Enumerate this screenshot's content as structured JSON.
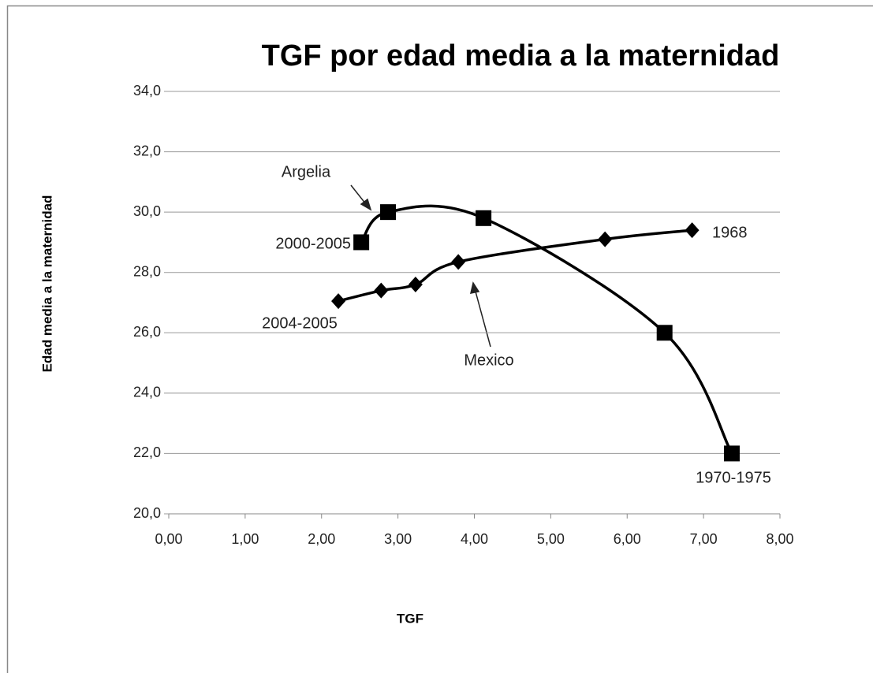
{
  "chart_data": {
    "type": "scatter",
    "title": "TGF por edad media a la maternidad",
    "x_label": "TGF",
    "y_label": "Edad media a la maternidad",
    "smooth": true,
    "grid": true,
    "series": [
      {
        "name": "Argelia",
        "color": "#000000",
        "marker": "square",
        "x": [
          2.52,
          2.87,
          4.12,
          6.49,
          7.37
        ],
        "values": [
          29.0,
          30.0,
          29.8,
          26.0,
          22.0
        ]
      },
      {
        "name": "Mexico",
        "color": "#000000",
        "marker": "diamond",
        "x": [
          2.22,
          2.78,
          3.23,
          3.79,
          5.71,
          6.85
        ],
        "values": [
          27.05,
          27.4,
          27.6,
          28.35,
          29.1,
          29.4
        ]
      }
    ],
    "annotations": [
      "2000-2005",
      "1970-1975",
      "2004-2005",
      "1968"
    ],
    "xlim": [
      0,
      8
    ],
    "xticks": [
      {
        "value": 0,
        "label": "0,00"
      },
      {
        "value": 1,
        "label": "1,00"
      },
      {
        "value": 2,
        "label": "2,00"
      },
      {
        "value": 3,
        "label": "3,00"
      },
      {
        "value": 4,
        "label": "4,00"
      },
      {
        "value": 5,
        "label": "5,00"
      },
      {
        "value": 6,
        "label": "6,00"
      },
      {
        "value": 7,
        "label": "7,00"
      },
      {
        "value": 8,
        "label": "8,00"
      }
    ],
    "ylim": [
      20,
      34
    ],
    "yticks": [
      {
        "value": 20,
        "label": "20,0"
      },
      {
        "value": 22,
        "label": "22,0"
      },
      {
        "value": 24,
        "label": "24,0"
      },
      {
        "value": 26,
        "label": "26,0"
      },
      {
        "value": 28,
        "label": "28,0"
      },
      {
        "value": 30,
        "label": "30,0"
      },
      {
        "value": 32,
        "label": "32,0"
      },
      {
        "value": 34,
        "label": "34,0"
      }
    ]
  }
}
